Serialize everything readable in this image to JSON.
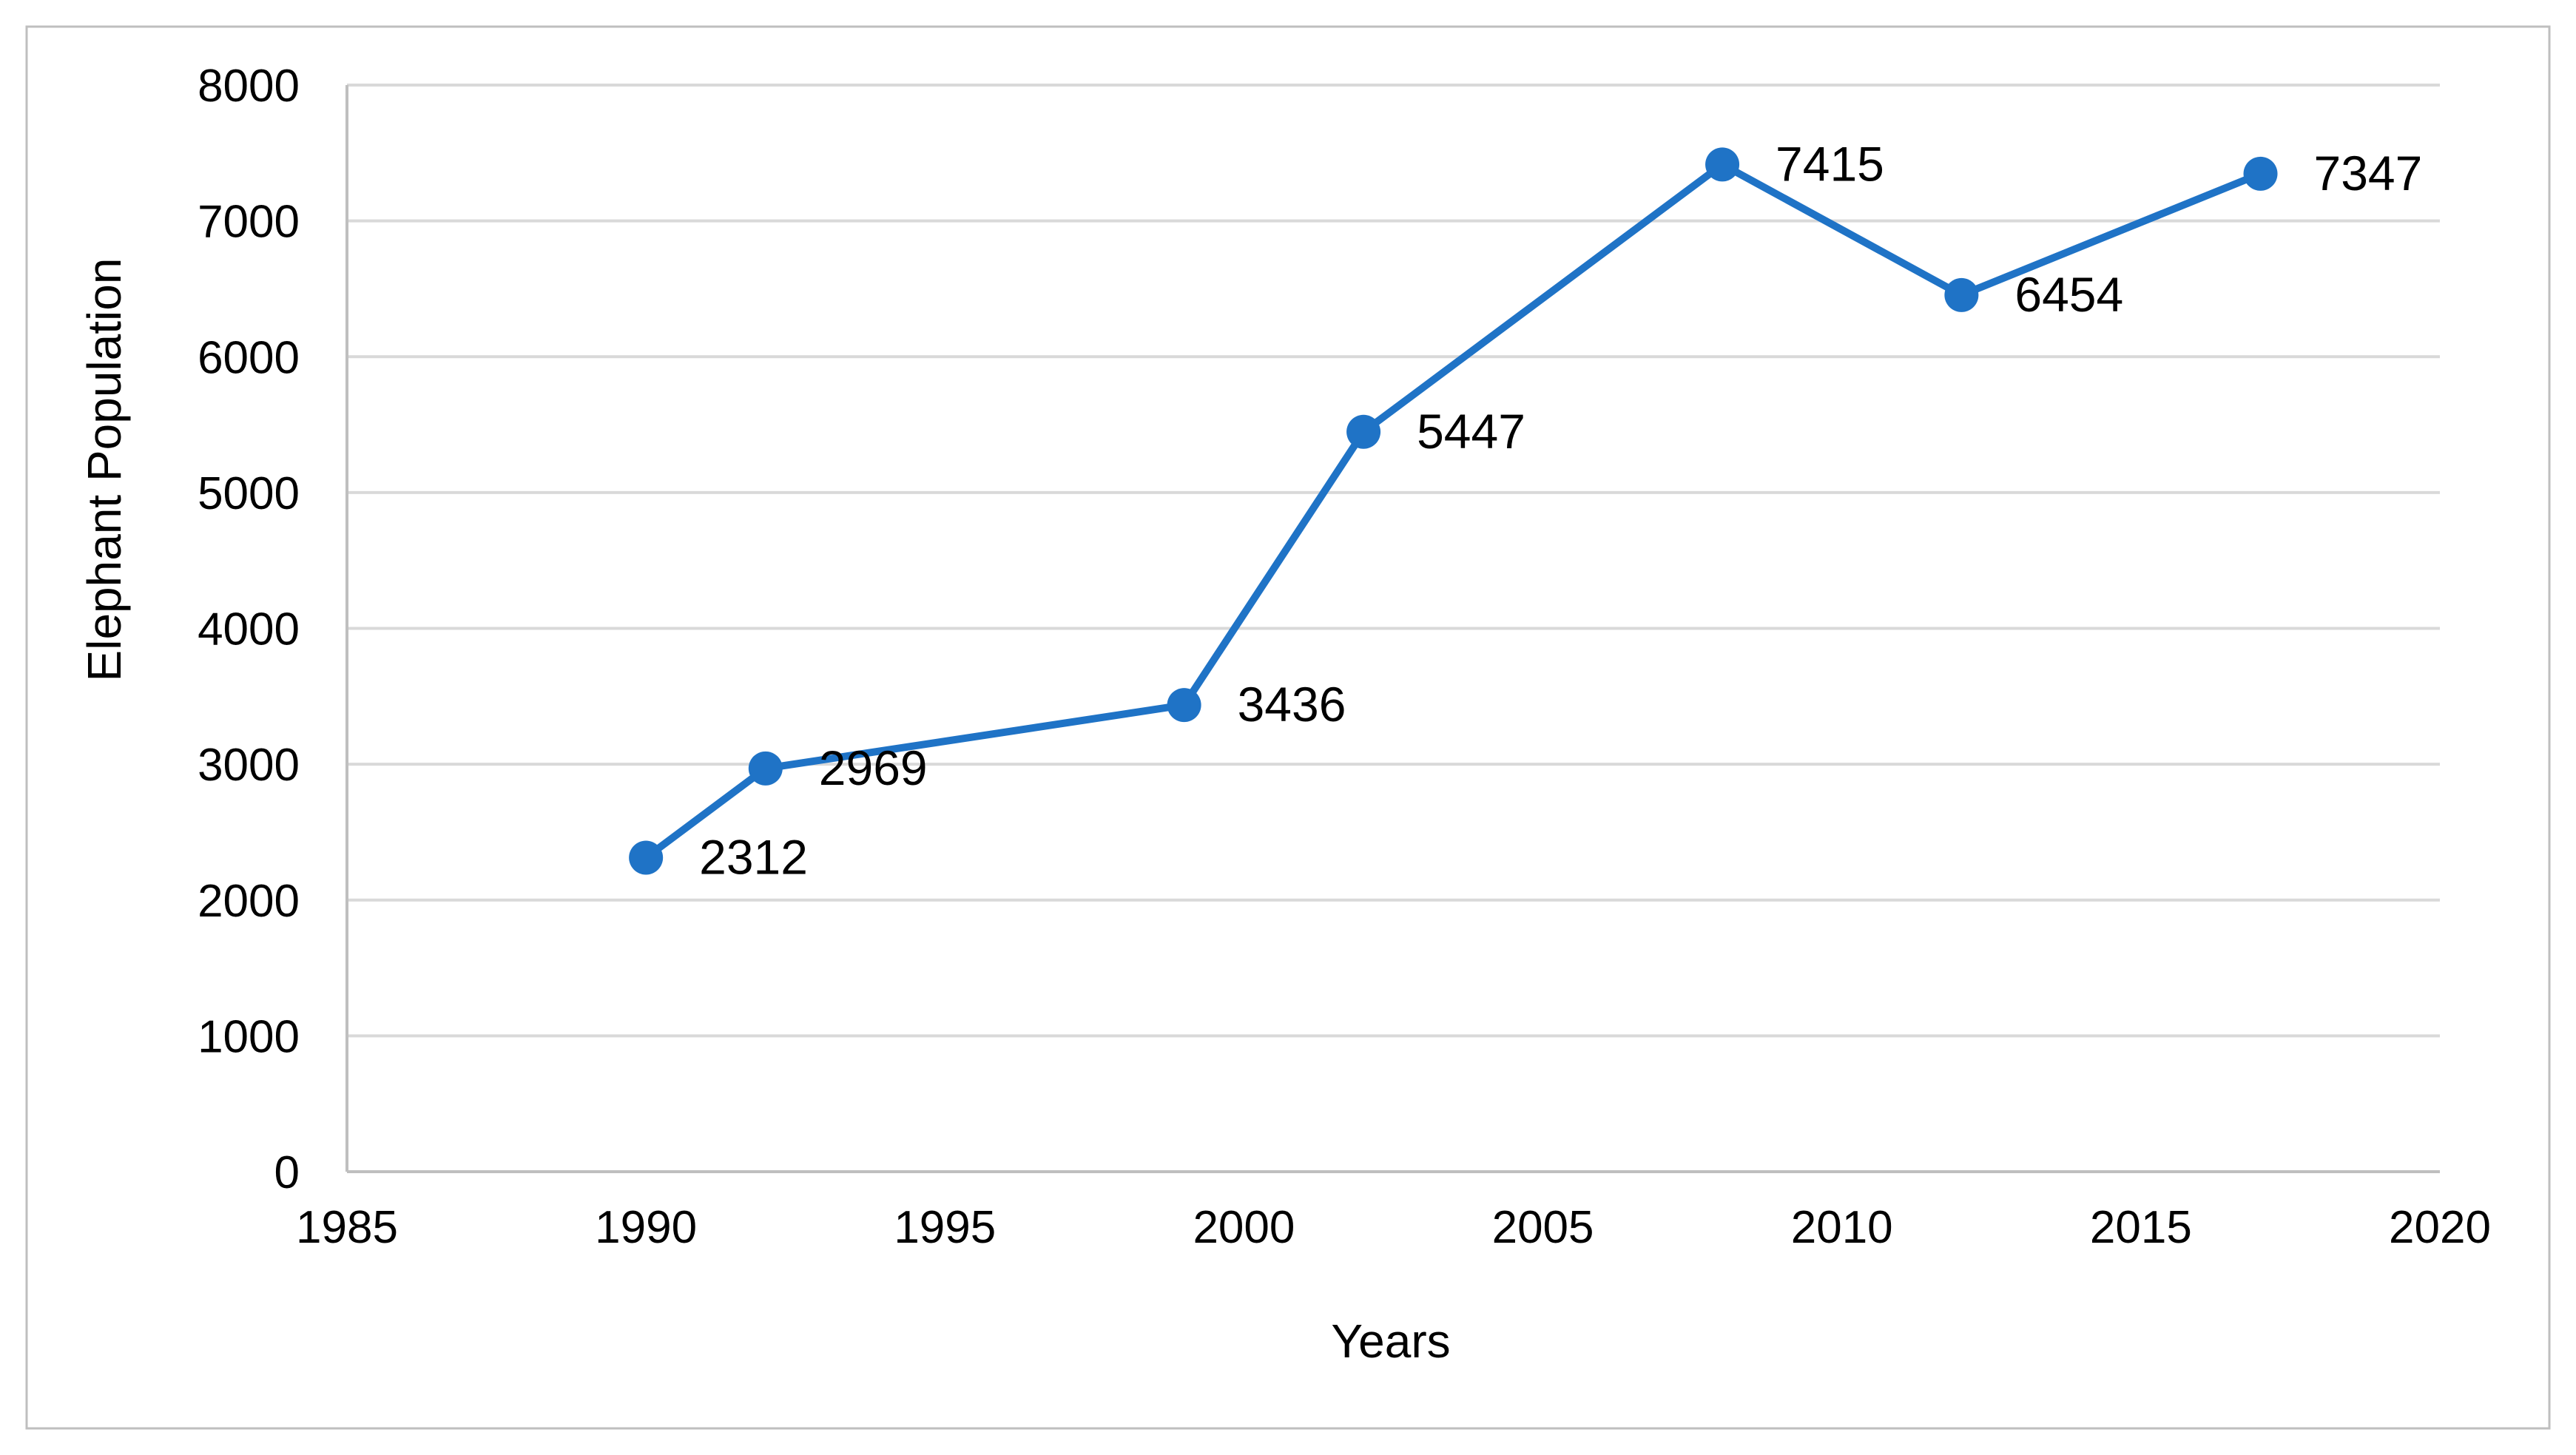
{
  "chart_data": {
    "type": "line",
    "title": "",
    "xlabel": "Years",
    "ylabel": "Elephant Population",
    "x": [
      1990,
      1992,
      1999,
      2002,
      2008,
      2012,
      2017
    ],
    "series": [
      {
        "values": [
          2312,
          2969,
          3436,
          5447,
          7415,
          6454,
          7347
        ]
      }
    ],
    "data_labels": [
      "2312",
      "2969",
      "3436",
      "5447",
      "7415",
      "6454",
      "7347"
    ],
    "xlim": [
      1985,
      2020
    ],
    "ylim": [
      0,
      8000
    ],
    "x_ticks": [
      "1985",
      "1990",
      "1995",
      "2000",
      "2005",
      "2010",
      "2015",
      "2020"
    ],
    "y_ticks": [
      "0",
      "1000",
      "2000",
      "3000",
      "4000",
      "5000",
      "6000",
      "7000",
      "8000"
    ],
    "grid": "horizontal",
    "legend": "none",
    "series_color": "#1f73c6"
  }
}
